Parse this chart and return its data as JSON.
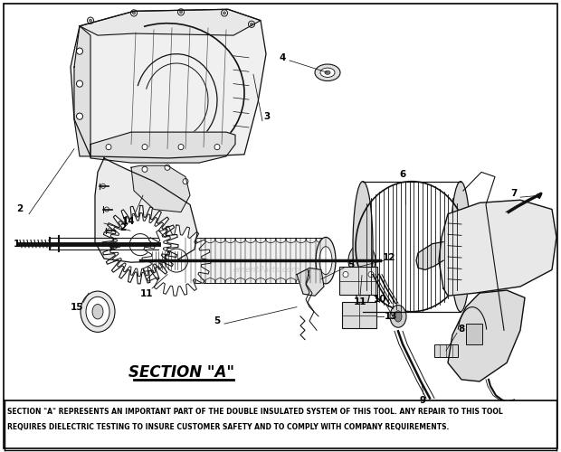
{
  "title": "SECTION \"A\"",
  "footer_text": "SECTION \"A\" REPRESENTS AN IMPORTANT PART OF THE DOUBLE INSULATED SYSTEM OF THIS TOOL. ANY REPAIR TO THIS TOOL\nREQUIRES DIELECTRIC TESTING TO INSURE CUSTOMER SAFETY AND TO COMPLY WITH COMPANY REQUIREMENTS.",
  "bg_color": "#ffffff",
  "footer_bg": "#ffffff",
  "text_color": "#000000",
  "dc": "#111111",
  "watermark": "ementParts.com",
  "figsize": [
    6.2,
    5.0
  ],
  "dpi": 100
}
